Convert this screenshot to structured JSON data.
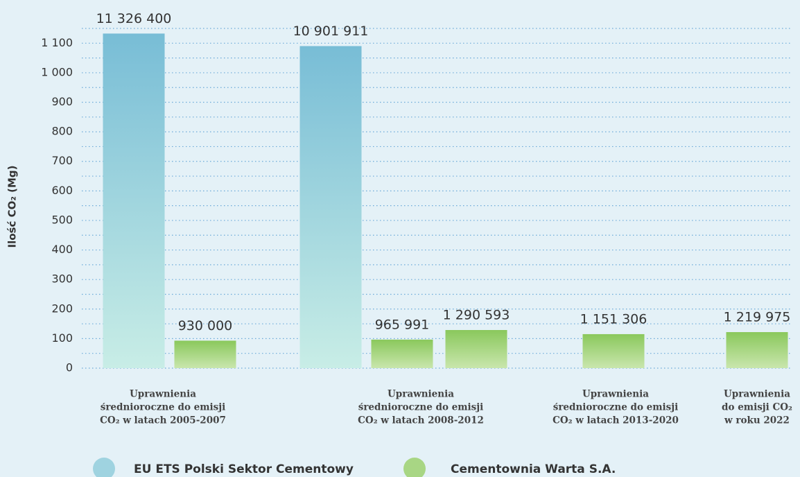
{
  "chart_data": {
    "type": "bar",
    "y_label": "Ilość CO₂ (Mg)",
    "categories": [
      [
        "Uprawnienia",
        "średnioroczne do emisji",
        "CO₂ w latach 2005-2007"
      ],
      [
        "Uprawnienia",
        "średnioroczne do emisji",
        "CO₂ w latach 2008-2012"
      ],
      [
        "Uprawnienia",
        "średnioroczne do emisji",
        "CO₂ w latach 2013-2020"
      ],
      [
        "Uprawnienia",
        "do emisji CO₂",
        "w roku 2022"
      ]
    ],
    "series": [
      {
        "name": "EU ETS Polski Sektor Cementowy",
        "color": "blue",
        "values": [
          1132.64,
          1090.1911,
          null,
          null
        ],
        "value_labels": [
          "11 326 400",
          "10 901 911",
          null,
          null
        ]
      },
      {
        "name": "Cementownia Warta S.A.",
        "color": "green",
        "values": [
          93,
          96.5991,
          115.1306,
          121.9975
        ],
        "value_labels": [
          "930 000",
          "965 991",
          "1 151 306",
          "1 219 975"
        ]
      },
      {
        "color": "green",
        "values": [
          null,
          129.0593,
          null,
          null
        ],
        "value_labels": [
          null,
          "1 290 593",
          null,
          null
        ]
      }
    ],
    "ylim": [
      0,
      1150
    ],
    "yticks": [
      0,
      100,
      200,
      300,
      400,
      500,
      600,
      700,
      800,
      900,
      {
        "value": 1000,
        "label": "1 000"
      },
      {
        "value": 1100,
        "label": "1 100"
      }
    ],
    "minor_yticks": [
      50,
      150,
      250,
      350,
      450,
      550,
      650,
      750,
      850,
      950,
      1050,
      1150
    ],
    "grid": true
  }
}
